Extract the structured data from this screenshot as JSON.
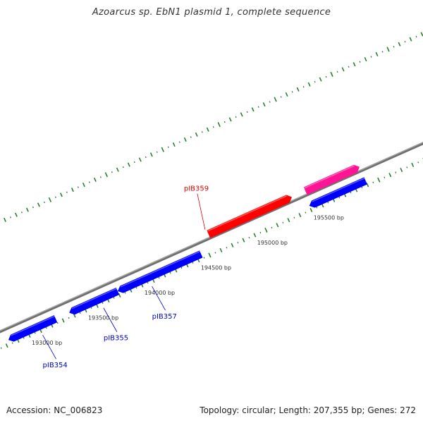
{
  "title": "Azoarcus sp. EbN1 plasmid 1, complete sequence",
  "footer": {
    "accession": "Accession: NC_006823",
    "info": "Topology: circular; Length: 207,355 bp; Genes: 272"
  },
  "colors": {
    "backbone": "#808080",
    "tick": "#2e7d32",
    "dot": "#2e7d32",
    "gene_forward_plus": "#0000ff",
    "gene_red": "#ff0000",
    "gene_pink": "#ff1493",
    "label_blue": "#0000cc",
    "label_red": "#dd0000"
  },
  "scale": {
    "ticks": [
      {
        "bp": 193000,
        "label": "193000 bp"
      },
      {
        "bp": 193500,
        "label": "193500 bp"
      },
      {
        "bp": 194000,
        "label": "194000 bp"
      },
      {
        "bp": 194500,
        "label": "194500 bp"
      },
      {
        "bp": 195000,
        "label": "195000 bp"
      },
      {
        "bp": 195500,
        "label": "195500 bp"
      }
    ]
  },
  "genes": [
    {
      "id": "pIB354",
      "label": "pIB354",
      "start": 192730,
      "end": 193150,
      "strand": "-",
      "color_key": "gene_forward_plus",
      "labeled": true
    },
    {
      "id": "pIB355",
      "label": "pIB355",
      "start": 193270,
      "end": 193700,
      "strand": "-",
      "color_key": "gene_forward_plus",
      "labeled": true
    },
    {
      "id": "pIB357",
      "label": "pIB357",
      "start": 193700,
      "end": 194440,
      "strand": "-",
      "color_key": "gene_forward_plus",
      "labeled": true
    },
    {
      "id": "pIB359",
      "label": "pIB359",
      "start": 194560,
      "end": 195300,
      "strand": "+",
      "color_key": "gene_red",
      "labeled": true
    },
    {
      "id": "gene-blue-right",
      "label": "",
      "start": 195400,
      "end": 195900,
      "strand": "-",
      "color_key": "gene_forward_plus",
      "labeled": false
    },
    {
      "id": "gene-pink-right",
      "label": "",
      "start": 195420,
      "end": 195900,
      "strand": "+",
      "color_key": "gene_pink",
      "labeled": false
    }
  ]
}
